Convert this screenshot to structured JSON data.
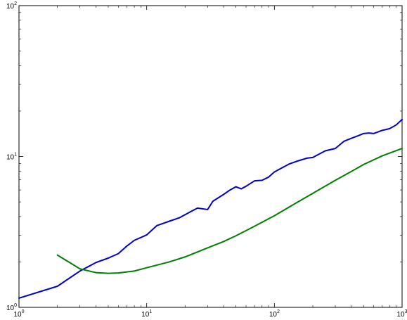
{
  "chart_data": {
    "type": "line",
    "title": "",
    "xlabel": "",
    "ylabel": "",
    "xscale": "log",
    "yscale": "log",
    "xlim": [
      1,
      1000
    ],
    "ylim": [
      1,
      100
    ],
    "grid": false,
    "legend": "none",
    "x_ticks": [
      {
        "value": 1,
        "base": "10",
        "exp": "0"
      },
      {
        "value": 10,
        "base": "10",
        "exp": "1"
      },
      {
        "value": 100,
        "base": "10",
        "exp": "2"
      },
      {
        "value": 1000,
        "base": "10",
        "exp": "3"
      }
    ],
    "y_ticks": [
      {
        "value": 1,
        "base": "10",
        "exp": "0"
      },
      {
        "value": 10,
        "base": "10",
        "exp": "1"
      },
      {
        "value": 100,
        "base": "10",
        "exp": "2"
      }
    ],
    "series": [
      {
        "color": "#0000cc",
        "points": [
          [
            1,
            1.15
          ],
          [
            2,
            1.38
          ],
          [
            3,
            1.74
          ],
          [
            4,
            1.98
          ],
          [
            5,
            2.12
          ],
          [
            6,
            2.27
          ],
          [
            7,
            2.55
          ],
          [
            8,
            2.78
          ],
          [
            10,
            3.02
          ],
          [
            12,
            3.48
          ],
          [
            15,
            3.72
          ],
          [
            18,
            3.92
          ],
          [
            22,
            4.3
          ],
          [
            25,
            4.55
          ],
          [
            30,
            4.45
          ],
          [
            33,
            5.05
          ],
          [
            40,
            5.6
          ],
          [
            45,
            6.0
          ],
          [
            50,
            6.3
          ],
          [
            55,
            6.1
          ],
          [
            60,
            6.35
          ],
          [
            70,
            6.9
          ],
          [
            80,
            6.95
          ],
          [
            90,
            7.3
          ],
          [
            100,
            7.9
          ],
          [
            130,
            8.9
          ],
          [
            150,
            9.3
          ],
          [
            180,
            9.75
          ],
          [
            200,
            9.85
          ],
          [
            250,
            10.9
          ],
          [
            300,
            11.3
          ],
          [
            350,
            12.6
          ],
          [
            400,
            13.2
          ],
          [
            450,
            13.7
          ],
          [
            500,
            14.2
          ],
          [
            550,
            14.3
          ],
          [
            600,
            14.2
          ],
          [
            700,
            14.9
          ],
          [
            800,
            15.3
          ],
          [
            900,
            16.2
          ],
          [
            1000,
            17.6
          ]
        ]
      },
      {
        "color": "#007f00",
        "points": [
          [
            2,
            2.22
          ],
          [
            2.5,
            1.98
          ],
          [
            3,
            1.8
          ],
          [
            4,
            1.7
          ],
          [
            5,
            1.68
          ],
          [
            6,
            1.69
          ],
          [
            8,
            1.74
          ],
          [
            10,
            1.83
          ],
          [
            15,
            2.0
          ],
          [
            20,
            2.16
          ],
          [
            30,
            2.48
          ],
          [
            40,
            2.73
          ],
          [
            50,
            2.98
          ],
          [
            70,
            3.45
          ],
          [
            100,
            4.05
          ],
          [
            150,
            4.95
          ],
          [
            200,
            5.7
          ],
          [
            300,
            6.95
          ],
          [
            400,
            7.95
          ],
          [
            500,
            8.85
          ],
          [
            700,
            10.1
          ],
          [
            1000,
            11.3
          ]
        ]
      }
    ]
  }
}
